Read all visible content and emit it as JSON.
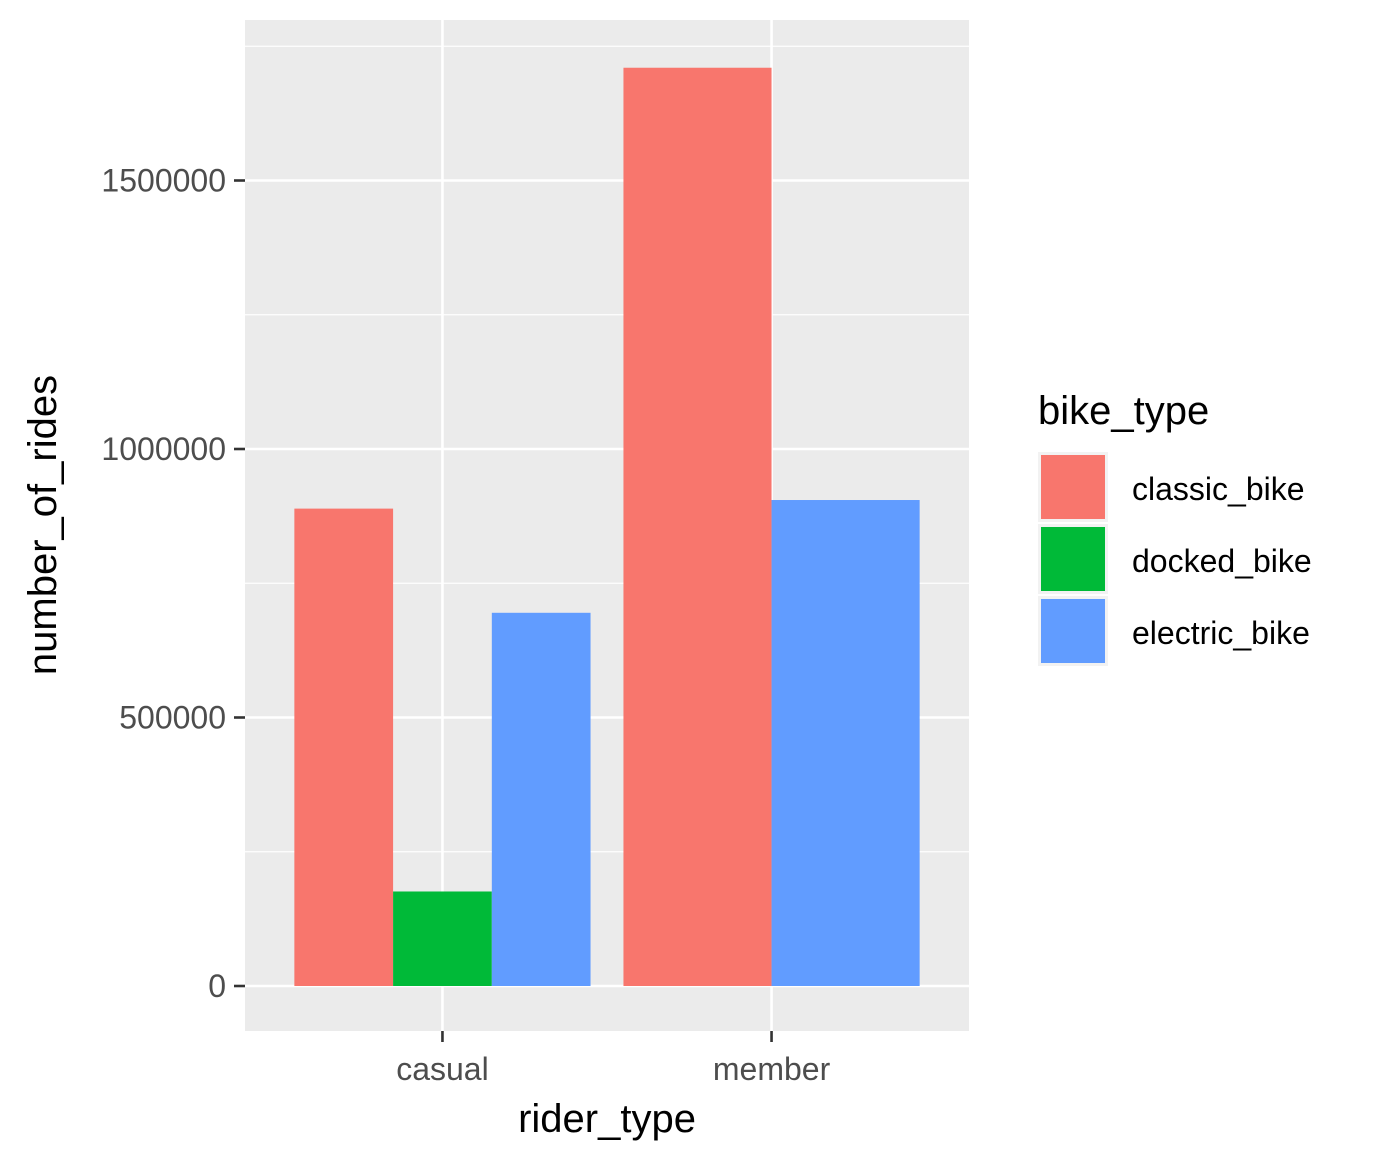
{
  "chart_data": {
    "type": "bar",
    "xlabel": "rider_type",
    "ylabel": "number_of_rides",
    "categories": [
      "casual",
      "member"
    ],
    "series": [
      {
        "name": "classic_bike",
        "color": "#F8766D",
        "values": [
          889000,
          1710000
        ]
      },
      {
        "name": "docked_bike",
        "color": "#00BA38",
        "values": [
          176000,
          null
        ]
      },
      {
        "name": "electric_bike",
        "color": "#619CFF",
        "values": [
          695000,
          905000
        ]
      }
    ],
    "ylim": [
      -82000,
      1800000
    ],
    "yticks": [
      0,
      500000,
      1000000,
      1500000
    ],
    "ytick_labels": [
      "0",
      "500000",
      "1000000",
      "1500000"
    ],
    "legend": {
      "title": "bike_type",
      "position": "right"
    },
    "grid": true,
    "colors": {
      "panel": "#EBEBEB",
      "grid": "#FFFFFF",
      "tick": "#333333"
    }
  }
}
